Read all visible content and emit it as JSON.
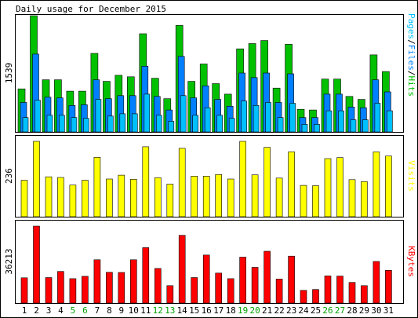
{
  "chart_data": [
    {
      "type": "bar",
      "title": "Daily usage for December 2015",
      "categories": [
        "1",
        "2",
        "3",
        "4",
        "5",
        "6",
        "7",
        "8",
        "9",
        "10",
        "11",
        "12",
        "13",
        "14",
        "15",
        "16",
        "17",
        "18",
        "19",
        "20",
        "21",
        "22",
        "23",
        "24",
        "25",
        "26",
        "27",
        "28",
        "29",
        "30",
        "31"
      ],
      "weekend_days": [
        "5",
        "6",
        "12",
        "13",
        "19",
        "20",
        "26",
        "27"
      ],
      "ylabel_max": "1539",
      "right_label": [
        "Pages",
        "Files",
        "Hits"
      ],
      "ylim": [
        0,
        1539
      ],
      "series": [
        {
          "name": "Hits",
          "color": "#00c000",
          "values": [
            570,
            1539,
            690,
            690,
            540,
            540,
            1040,
            670,
            750,
            730,
            1300,
            710,
            440,
            1410,
            670,
            900,
            640,
            500,
            1100,
            1170,
            1210,
            580,
            1160,
            300,
            290,
            700,
            700,
            470,
            430,
            1020,
            800
          ]
        },
        {
          "name": "Files",
          "color": "#0080ff",
          "values": [
            390,
            1030,
            460,
            450,
            350,
            360,
            690,
            440,
            480,
            480,
            870,
            470,
            290,
            1000,
            450,
            610,
            430,
            340,
            780,
            720,
            780,
            390,
            770,
            190,
            190,
            500,
            500,
            330,
            320,
            690,
            530
          ]
        },
        {
          "name": "Pages",
          "color": "#00c0ff",
          "values": [
            190,
            420,
            220,
            220,
            190,
            180,
            430,
            210,
            240,
            240,
            500,
            220,
            140,
            480,
            220,
            320,
            220,
            180,
            410,
            350,
            390,
            190,
            380,
            100,
            100,
            280,
            280,
            160,
            160,
            380,
            280
          ]
        }
      ]
    },
    {
      "type": "bar",
      "categories": [
        "1",
        "2",
        "3",
        "4",
        "5",
        "6",
        "7",
        "8",
        "9",
        "10",
        "11",
        "12",
        "13",
        "14",
        "15",
        "16",
        "17",
        "18",
        "19",
        "20",
        "21",
        "22",
        "23",
        "24",
        "25",
        "26",
        "27",
        "28",
        "29",
        "30",
        "31"
      ],
      "ylabel_max": "236",
      "right_label": "Visits",
      "ylim": [
        0,
        236
      ],
      "series": [
        {
          "name": "Visits",
          "color": "#ffff00",
          "values": [
            114,
            236,
            125,
            123,
            99,
            114,
            186,
            118,
            130,
            117,
            219,
            122,
            102,
            214,
            127,
            127,
            132,
            118,
            236,
            131,
            217,
            121,
            203,
            98,
            97,
            182,
            185,
            116,
            110,
            203,
            190
          ]
        }
      ]
    },
    {
      "type": "bar",
      "categories": [
        "1",
        "2",
        "3",
        "4",
        "5",
        "6",
        "7",
        "8",
        "9",
        "10",
        "11",
        "12",
        "13",
        "14",
        "15",
        "16",
        "17",
        "18",
        "19",
        "20",
        "21",
        "22",
        "23",
        "24",
        "25",
        "26",
        "27",
        "28",
        "29",
        "30",
        "31"
      ],
      "ylabel_max": "36213",
      "right_label": "KBytes",
      "ylim": [
        0,
        36213
      ],
      "series": [
        {
          "name": "KBytes",
          "color": "#ff0000",
          "values": [
            11900,
            36213,
            12000,
            14900,
            11500,
            12600,
            20400,
            14500,
            14400,
            20400,
            26100,
            16300,
            8200,
            31900,
            12000,
            22600,
            14100,
            11500,
            21600,
            16800,
            24400,
            11300,
            22100,
            6000,
            6400,
            12800,
            12700,
            9700,
            8200,
            19600,
            15400
          ]
        }
      ]
    }
  ]
}
